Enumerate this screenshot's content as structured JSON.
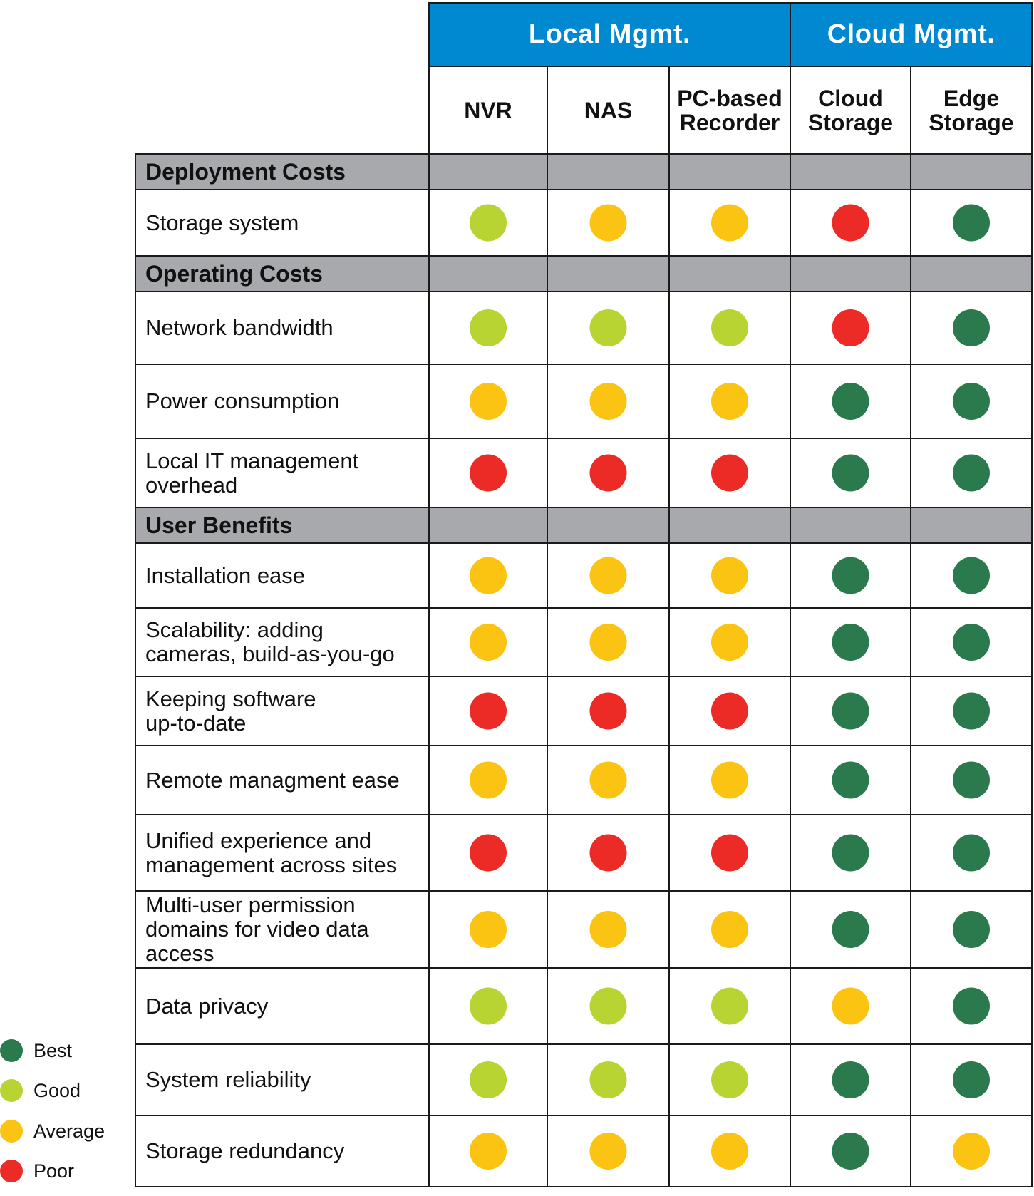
{
  "chart_data": {
    "type": "table",
    "groups": [
      {
        "label": "Local Mgmt.",
        "columns": [
          "NVR",
          "NAS",
          "PC-based\nRecorder"
        ]
      },
      {
        "label": "Cloud Mgmt.",
        "columns": [
          "Cloud\nStorage",
          "Edge\nStorage"
        ]
      }
    ],
    "columns": [
      "NVR",
      "NAS",
      "PC-based\nRecorder",
      "Cloud\nStorage",
      "Edge\nStorage"
    ],
    "sections": [
      {
        "label": "Deployment Costs",
        "rows": [
          {
            "label": "Storage system",
            "ratings": [
              "Good",
              "Average",
              "Average",
              "Poor",
              "Best"
            ]
          }
        ]
      },
      {
        "label": "Operating Costs",
        "rows": [
          {
            "label": "Network bandwidth",
            "ratings": [
              "Good",
              "Good",
              "Good",
              "Poor",
              "Best"
            ]
          },
          {
            "label": "Power consumption",
            "ratings": [
              "Average",
              "Average",
              "Average",
              "Best",
              "Best"
            ]
          },
          {
            "label": "Local IT management\noverhead",
            "ratings": [
              "Poor",
              "Poor",
              "Poor",
              "Best",
              "Best"
            ]
          }
        ]
      },
      {
        "label": "User Benefits",
        "rows": [
          {
            "label": "Installation ease",
            "ratings": [
              "Average",
              "Average",
              "Average",
              "Best",
              "Best"
            ]
          },
          {
            "label": "Scalability: adding\ncameras, build-as-you-go",
            "ratings": [
              "Average",
              "Average",
              "Average",
              "Best",
              "Best"
            ]
          },
          {
            "label": "Keeping software\nup-to-date",
            "ratings": [
              "Poor",
              "Poor",
              "Poor",
              "Best",
              "Best"
            ]
          },
          {
            "label": "Remote managment ease",
            "ratings": [
              "Average",
              "Average",
              "Average",
              "Best",
              "Best"
            ]
          },
          {
            "label": "Unified experience and\nmanagement across sites",
            "ratings": [
              "Poor",
              "Poor",
              "Poor",
              "Best",
              "Best"
            ]
          },
          {
            "label": "Multi-user permission\ndomains for video data\naccess",
            "ratings": [
              "Average",
              "Average",
              "Average",
              "Best",
              "Best"
            ]
          },
          {
            "label": "Data privacy",
            "ratings": [
              "Good",
              "Good",
              "Good",
              "Average",
              "Best"
            ]
          },
          {
            "label": "System reliability",
            "ratings": [
              "Good",
              "Good",
              "Good",
              "Best",
              "Best"
            ]
          },
          {
            "label": "Storage redundancy",
            "ratings": [
              "Average",
              "Average",
              "Average",
              "Best",
              "Average"
            ]
          }
        ]
      }
    ],
    "legend": [
      {
        "label": "Best",
        "color": "#2a7a4e"
      },
      {
        "label": "Good",
        "color": "#b8d433"
      },
      {
        "label": "Average",
        "color": "#fbc412"
      },
      {
        "label": "Poor",
        "color": "#ec2b27"
      }
    ],
    "colors": {
      "header_blue": "#0088d1",
      "section_gray": "#a7a9ac",
      "grid": "#1a1a1a"
    }
  }
}
